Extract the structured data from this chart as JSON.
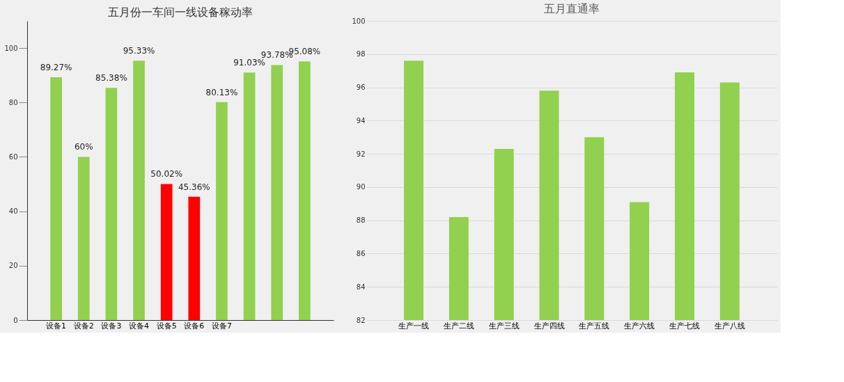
{
  "chart_data": [
    {
      "type": "bar",
      "title": "五月份一车间一线设备稼动率",
      "categories": [
        "设备1",
        "设备2",
        "设备3",
        "设备4",
        "设备5",
        "设备6",
        "设备7",
        null,
        null,
        null
      ],
      "values": [
        89.27,
        60,
        85.38,
        95.33,
        50.02,
        45.36,
        80.13,
        91.03,
        93.78,
        95.08
      ],
      "colors": [
        "#92d050",
        "#92d050",
        "#92d050",
        "#92d050",
        "#ff0000",
        "#ff0000",
        "#92d050",
        "#92d050",
        "#92d050",
        "#92d050"
      ],
      "value_labels": [
        "89.27%",
        "60%",
        "85.38%",
        "95.33%",
        "50.02%",
        "45.36%",
        "80.13%",
        "91.03%",
        "93.78%",
        "95.08%"
      ],
      "ylim": [
        0,
        110
      ],
      "yticks": [
        0,
        20,
        40,
        60,
        80,
        100
      ],
      "grid": false
    },
    {
      "type": "bar",
      "title": "五月直通率",
      "categories": [
        "生产一线",
        "生产二线",
        "生产三线",
        "生产四线",
        "生产五线",
        "生产六线",
        "生产七线",
        "生产八线"
      ],
      "values": [
        97.6,
        88.2,
        92.3,
        95.8,
        93.0,
        89.1,
        96.9,
        96.3
      ],
      "color": "#92d050",
      "ylim": [
        82,
        100
      ],
      "yticks": [
        82,
        84,
        86,
        88,
        90,
        92,
        94,
        96,
        98,
        100
      ],
      "grid": "y"
    }
  ]
}
